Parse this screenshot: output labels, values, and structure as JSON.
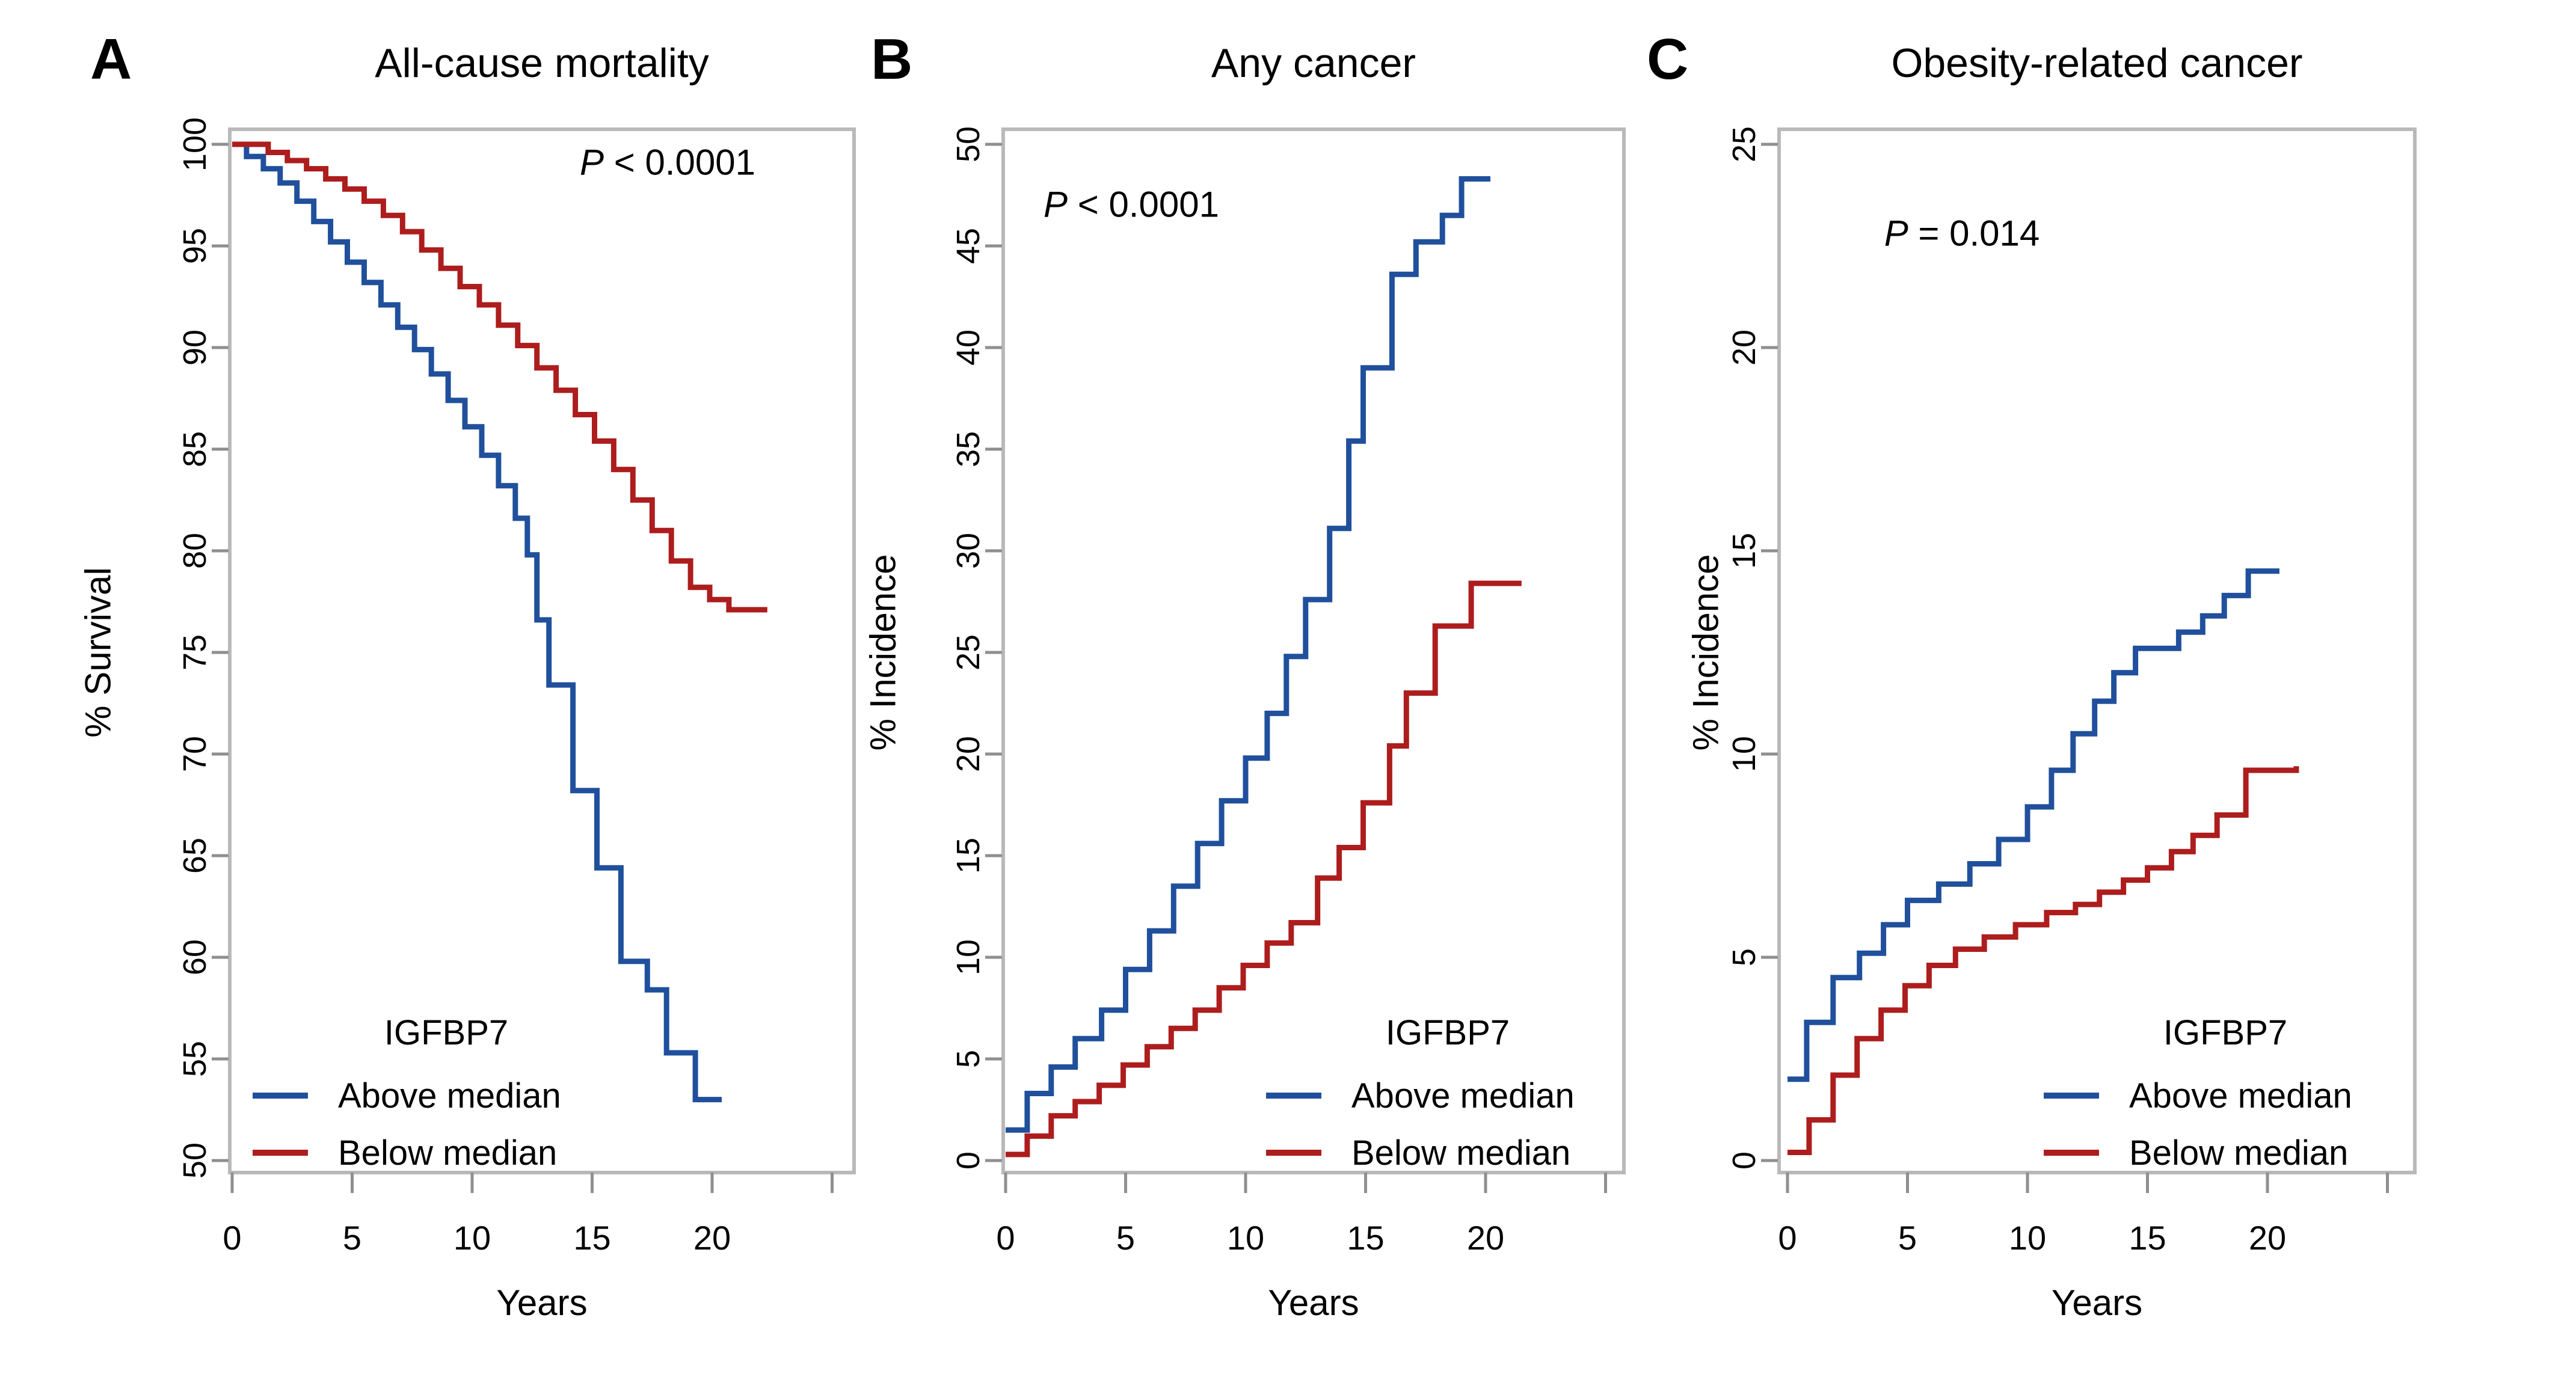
{
  "colors": {
    "above_median_blue": "#20509c",
    "below_median_red": "#ad1d1d",
    "frame_gray": "#b9b9b9",
    "tick_gray": "#8f8f8f",
    "text_black": "#000000",
    "background": "#ffffff"
  },
  "legend": {
    "title": "IGFBP7",
    "above": "Above median",
    "below": "Below median"
  },
  "x_axis_shared": {
    "label": "Years",
    "labeled_ticks": [
      0,
      5,
      10,
      15,
      20
    ],
    "unlabeled_tick": 25
  },
  "chart_data": [
    {
      "type": "line",
      "style": "step",
      "panel": "A",
      "title": "All-cause mortality",
      "p_label": {
        "symbol": "P",
        "comparison": " < 0.0001"
      },
      "xlabel": "Years",
      "ylabel": "% Survival",
      "xlim": [
        0,
        26
      ],
      "ylim": [
        50,
        100
      ],
      "xticks": [
        0,
        5,
        10,
        15,
        20
      ],
      "xtick_unlabeled": 25,
      "ytick_min": 50,
      "ytick_max": 100,
      "ytick_step": 5,
      "grid": false,
      "legend_position": "bottom-left",
      "series": [
        {
          "name": "Above median",
          "color_key": "above_median_blue",
          "points": [
            [
              0,
              100
            ],
            [
              0.6,
              99.4
            ],
            [
              1.3,
              98.8
            ],
            [
              2.0,
              98.1
            ],
            [
              2.7,
              97.2
            ],
            [
              3.4,
              96.2
            ],
            [
              4.1,
              95.2
            ],
            [
              4.8,
              94.2
            ],
            [
              5.5,
              93.2
            ],
            [
              6.2,
              92.1
            ],
            [
              6.9,
              91.0
            ],
            [
              7.6,
              89.9
            ],
            [
              8.3,
              88.7
            ],
            [
              9.0,
              87.4
            ],
            [
              9.7,
              86.1
            ],
            [
              10.4,
              84.7
            ],
            [
              11.1,
              83.2
            ],
            [
              11.8,
              81.6
            ],
            [
              12.3,
              79.8
            ],
            [
              12.7,
              76.6
            ],
            [
              13.2,
              73.4
            ],
            [
              14.2,
              68.2
            ],
            [
              15.2,
              64.4
            ],
            [
              16.2,
              59.8
            ],
            [
              17.3,
              58.4
            ],
            [
              18.1,
              55.3
            ],
            [
              19.3,
              53.0
            ],
            [
              20.4,
              53.0
            ]
          ]
        },
        {
          "name": "Below median",
          "color_key": "below_median_red",
          "points": [
            [
              0,
              100
            ],
            [
              1.5,
              99.6
            ],
            [
              2.3,
              99.2
            ],
            [
              3.1,
              98.8
            ],
            [
              3.9,
              98.3
            ],
            [
              4.7,
              97.8
            ],
            [
              5.5,
              97.2
            ],
            [
              6.3,
              96.5
            ],
            [
              7.1,
              95.7
            ],
            [
              7.9,
              94.8
            ],
            [
              8.7,
              93.9
            ],
            [
              9.5,
              93.0
            ],
            [
              10.3,
              92.1
            ],
            [
              11.1,
              91.1
            ],
            [
              11.9,
              90.1
            ],
            [
              12.7,
              89.0
            ],
            [
              13.5,
              87.9
            ],
            [
              14.3,
              86.7
            ],
            [
              15.1,
              85.4
            ],
            [
              15.9,
              84.0
            ],
            [
              16.7,
              82.5
            ],
            [
              17.5,
              81.0
            ],
            [
              18.3,
              79.5
            ],
            [
              19.1,
              78.2
            ],
            [
              19.9,
              77.6
            ],
            [
              20.7,
              77.1
            ],
            [
              22.3,
              77.1
            ]
          ]
        }
      ]
    },
    {
      "type": "line",
      "style": "step",
      "panel": "B",
      "title": "Any cancer",
      "p_label": {
        "symbol": "P",
        "comparison": " < 0.0001"
      },
      "xlabel": "Years",
      "ylabel": "% Incidence",
      "xlim": [
        0,
        26
      ],
      "ylim": [
        0,
        50
      ],
      "xticks": [
        0,
        5,
        10,
        15,
        20
      ],
      "xtick_unlabeled": 25,
      "ytick_min": 0,
      "ytick_max": 50,
      "ytick_step": 5,
      "grid": false,
      "legend_position": "bottom-right",
      "series": [
        {
          "name": "Above median",
          "color_key": "above_median_blue",
          "points": [
            [
              0,
              1.5
            ],
            [
              0.9,
              3.3
            ],
            [
              1.9,
              4.6
            ],
            [
              2.9,
              6.0
            ],
            [
              4.0,
              7.4
            ],
            [
              5.0,
              9.4
            ],
            [
              6.0,
              11.3
            ],
            [
              7.0,
              13.5
            ],
            [
              8.0,
              15.6
            ],
            [
              9.0,
              17.7
            ],
            [
              10.0,
              19.8
            ],
            [
              10.9,
              22.0
            ],
            [
              11.7,
              24.8
            ],
            [
              12.5,
              27.6
            ],
            [
              13.5,
              31.1
            ],
            [
              14.3,
              35.4
            ],
            [
              14.9,
              39.0
            ],
            [
              16.1,
              43.6
            ],
            [
              17.1,
              45.2
            ],
            [
              18.2,
              46.5
            ],
            [
              19.0,
              48.3
            ],
            [
              20.2,
              48.3
            ]
          ]
        },
        {
          "name": "Below median",
          "color_key": "below_median_red",
          "points": [
            [
              0,
              0.3
            ],
            [
              0.9,
              1.2
            ],
            [
              1.9,
              2.2
            ],
            [
              2.9,
              2.9
            ],
            [
              3.9,
              3.7
            ],
            [
              4.9,
              4.7
            ],
            [
              5.9,
              5.6
            ],
            [
              6.9,
              6.5
            ],
            [
              7.9,
              7.4
            ],
            [
              8.9,
              8.5
            ],
            [
              9.9,
              9.6
            ],
            [
              10.9,
              10.7
            ],
            [
              11.9,
              11.7
            ],
            [
              13.0,
              13.9
            ],
            [
              13.9,
              15.4
            ],
            [
              14.9,
              17.6
            ],
            [
              16.0,
              20.4
            ],
            [
              16.7,
              23.0
            ],
            [
              17.9,
              26.3
            ],
            [
              19.4,
              28.4
            ],
            [
              21.5,
              28.4
            ]
          ]
        }
      ]
    },
    {
      "type": "line",
      "style": "step",
      "panel": "C",
      "title": "Obesity-related cancer",
      "p_label": {
        "symbol": "P",
        "comparison": " = 0.014"
      },
      "xlabel": "Years",
      "ylabel": "% Incidence",
      "xlim": [
        0,
        26
      ],
      "ylim": [
        0,
        25
      ],
      "xticks": [
        0,
        5,
        10,
        15,
        20
      ],
      "xtick_unlabeled": 25,
      "ytick_min": 0,
      "ytick_max": 25,
      "ytick_step": 5,
      "grid": false,
      "legend_position": "bottom-right",
      "series": [
        {
          "name": "Above median",
          "color_key": "above_median_blue",
          "points": [
            [
              0,
              2.0
            ],
            [
              0.8,
              3.4
            ],
            [
              1.9,
              4.5
            ],
            [
              3.0,
              5.1
            ],
            [
              4.0,
              5.8
            ],
            [
              5.0,
              6.4
            ],
            [
              6.3,
              6.8
            ],
            [
              7.6,
              7.3
            ],
            [
              8.8,
              7.9
            ],
            [
              10.0,
              8.7
            ],
            [
              11.0,
              9.6
            ],
            [
              11.9,
              10.5
            ],
            [
              12.8,
              11.3
            ],
            [
              13.6,
              12.0
            ],
            [
              14.5,
              12.6
            ],
            [
              16.3,
              13.0
            ],
            [
              17.3,
              13.4
            ],
            [
              18.2,
              13.9
            ],
            [
              19.2,
              14.5
            ],
            [
              20.5,
              14.5
            ]
          ]
        },
        {
          "name": "Below median",
          "color_key": "below_median_red",
          "points": [
            [
              0,
              0.2
            ],
            [
              0.9,
              1.0
            ],
            [
              1.9,
              2.1
            ],
            [
              2.9,
              3.0
            ],
            [
              3.9,
              3.7
            ],
            [
              4.9,
              4.3
            ],
            [
              5.9,
              4.8
            ],
            [
              7.0,
              5.2
            ],
            [
              8.2,
              5.5
            ],
            [
              9.5,
              5.8
            ],
            [
              10.8,
              6.1
            ],
            [
              12.0,
              6.3
            ],
            [
              13.0,
              6.6
            ],
            [
              14.0,
              6.9
            ],
            [
              15.0,
              7.2
            ],
            [
              16.0,
              7.6
            ],
            [
              16.9,
              8.0
            ],
            [
              17.9,
              8.5
            ],
            [
              19.1,
              9.6
            ],
            [
              21.2,
              9.7
            ]
          ]
        }
      ]
    }
  ]
}
